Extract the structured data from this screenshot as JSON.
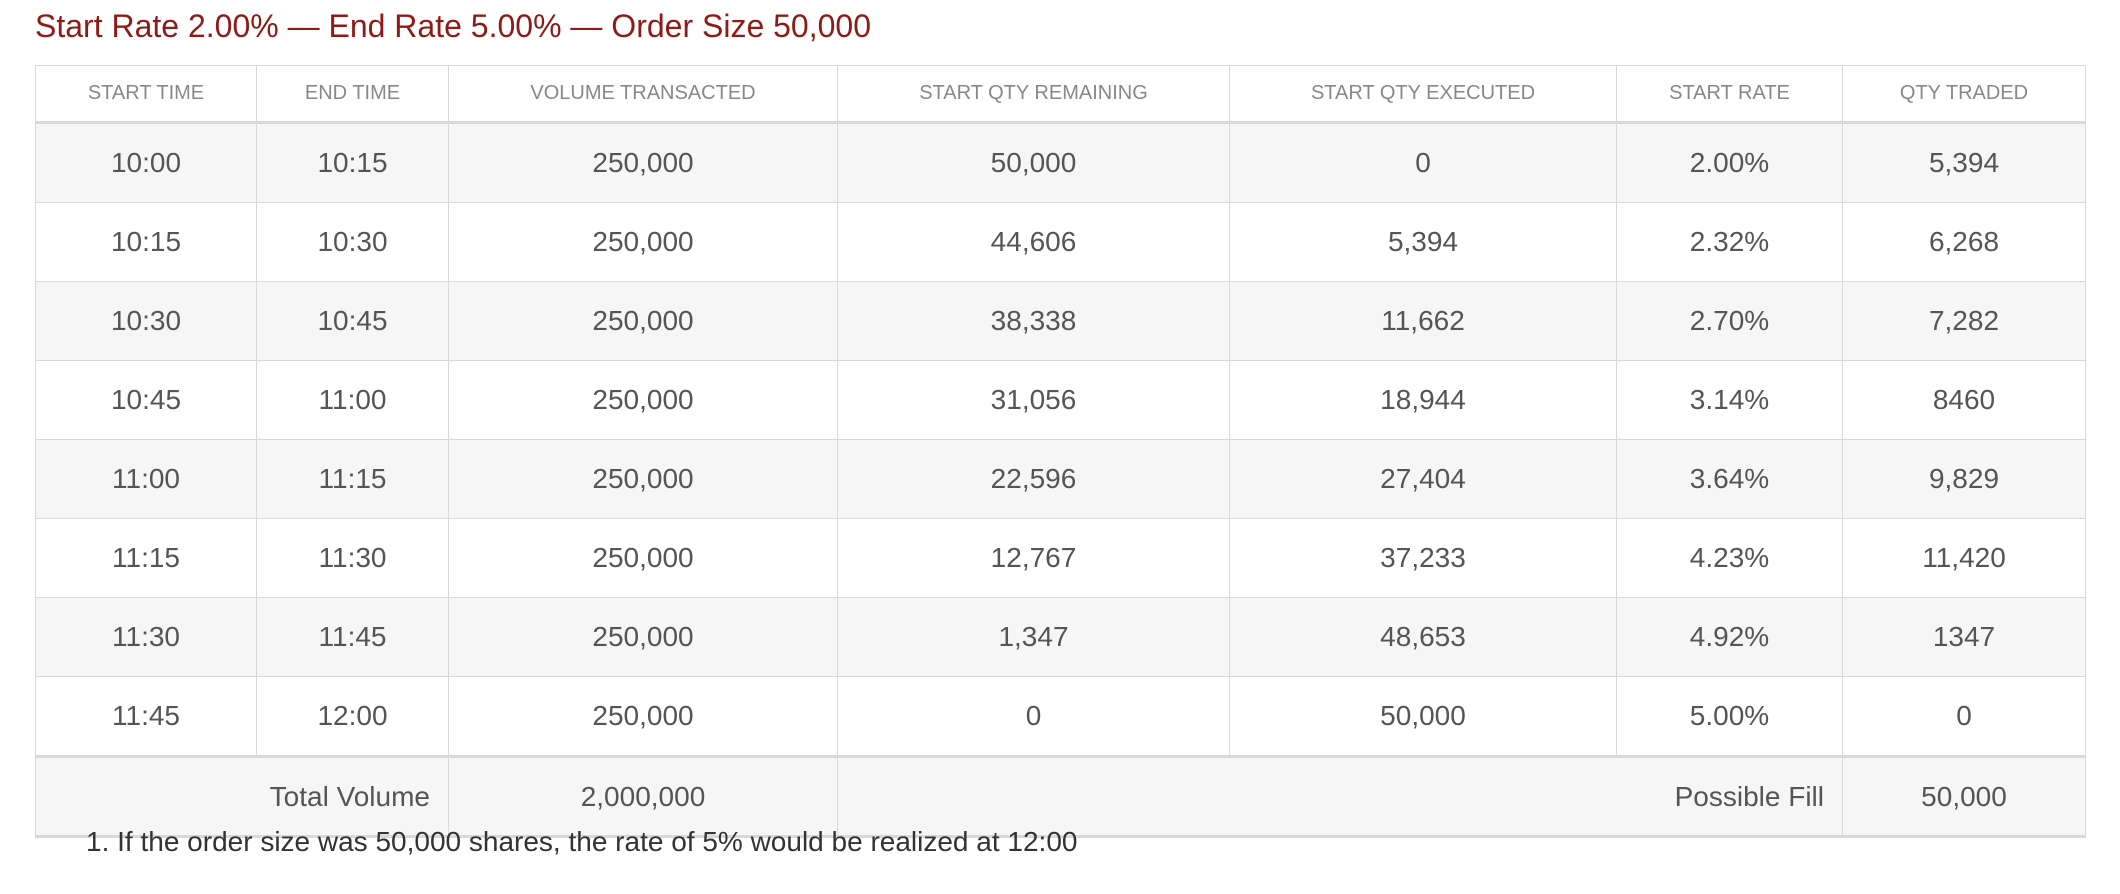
{
  "title": "Start Rate 2.00% — End Rate 5.00% — Order Size 50,000",
  "table": {
    "headers": [
      "START TIME",
      "END TIME",
      "VOLUME TRANSACTED",
      "START QTY REMAINING",
      "START QTY EXECUTED",
      "START RATE",
      "QTY TRADED"
    ],
    "rows": [
      [
        "10:00",
        "10:15",
        "250,000",
        "50,000",
        "0",
        "2.00%",
        "5,394"
      ],
      [
        "10:15",
        "10:30",
        "250,000",
        "44,606",
        "5,394",
        "2.32%",
        "6,268"
      ],
      [
        "10:30",
        "10:45",
        "250,000",
        "38,338",
        "11,662",
        "2.70%",
        "7,282"
      ],
      [
        "10:45",
        "11:00",
        "250,000",
        "31,056",
        "18,944",
        "3.14%",
        "8460"
      ],
      [
        "11:00",
        "11:15",
        "250,000",
        "22,596",
        "27,404",
        "3.64%",
        "9,829"
      ],
      [
        "11:15",
        "11:30",
        "250,000",
        "12,767",
        "37,233",
        "4.23%",
        "11,420"
      ],
      [
        "11:30",
        "11:45",
        "250,000",
        "1,347",
        "48,653",
        "4.92%",
        "1347"
      ],
      [
        "11:45",
        "12:00",
        "250,000",
        "0",
        "50,000",
        "5.00%",
        "0"
      ]
    ],
    "footer": {
      "total_volume_label": "Total Volume",
      "total_volume": "2,000,000",
      "possible_fill_label": "Possible Fill",
      "possible_fill": "50,000"
    }
  },
  "footnote": "1. If the order size was 50,000 shares, the rate of 5% would be realized at 12:00",
  "colors": {
    "title": "#8e1b17",
    "text": "#555555",
    "header": "#888888",
    "stripe": "#f6f6f6",
    "border": "#d9d9d9"
  }
}
